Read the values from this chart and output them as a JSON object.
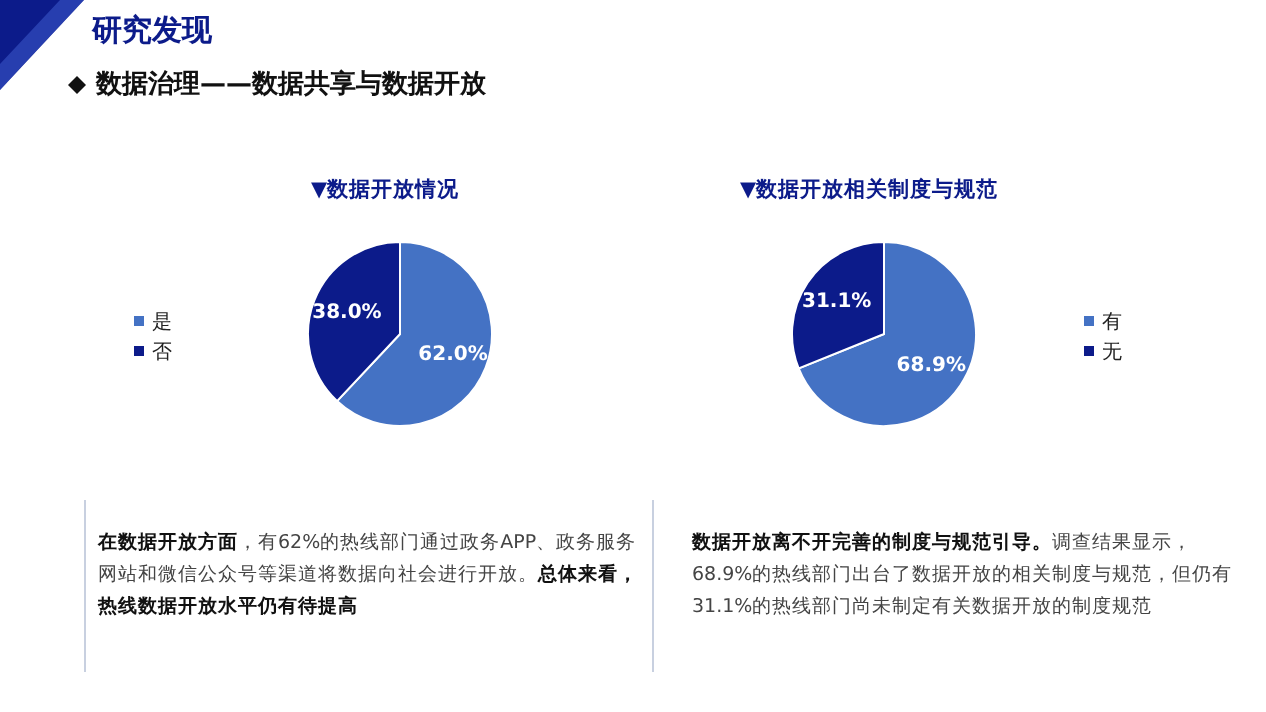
{
  "chart_data": [
    {
      "type": "other",
      "title": "研究发现",
      "subtitle": "数据治理——数据共享与数据开放"
    },
    {
      "type": "pie",
      "title": "▼数据开放情况",
      "categories": [
        "是",
        "否"
      ],
      "values": [
        62,
        38
      ],
      "colors": [
        "#4472c4",
        "#0c1b8a"
      ],
      "value_labels": [
        "62.0%",
        "38.0%"
      ],
      "legend": "left",
      "annotations": [
        "在数据开放方面",
        "，有62%的热线部门通过政务APP、政务服务网站和微信公众号等渠道将数据向社会进行开放。",
        "总体来看，热线数据开放水平仍有待提高"
      ]
    },
    {
      "type": "pie",
      "title": "▼数据开放相关制度与规范",
      "categories": [
        "有",
        "无"
      ],
      "values": [
        68.9,
        31.1
      ],
      "colors": [
        "#4472c4",
        "#0c1b8a"
      ],
      "value_labels": [
        "68.9%",
        "31.1%"
      ],
      "legend": "right",
      "annotations": [
        "数据开放离不开完善的制度与规范引导。",
        "调查结果显示，68.9%的热线部门出台了数据开放的相关制度与规范，但仍有31.1%的热线部门尚未制定有关数据开放的制度规范"
      ]
    }
  ]
}
